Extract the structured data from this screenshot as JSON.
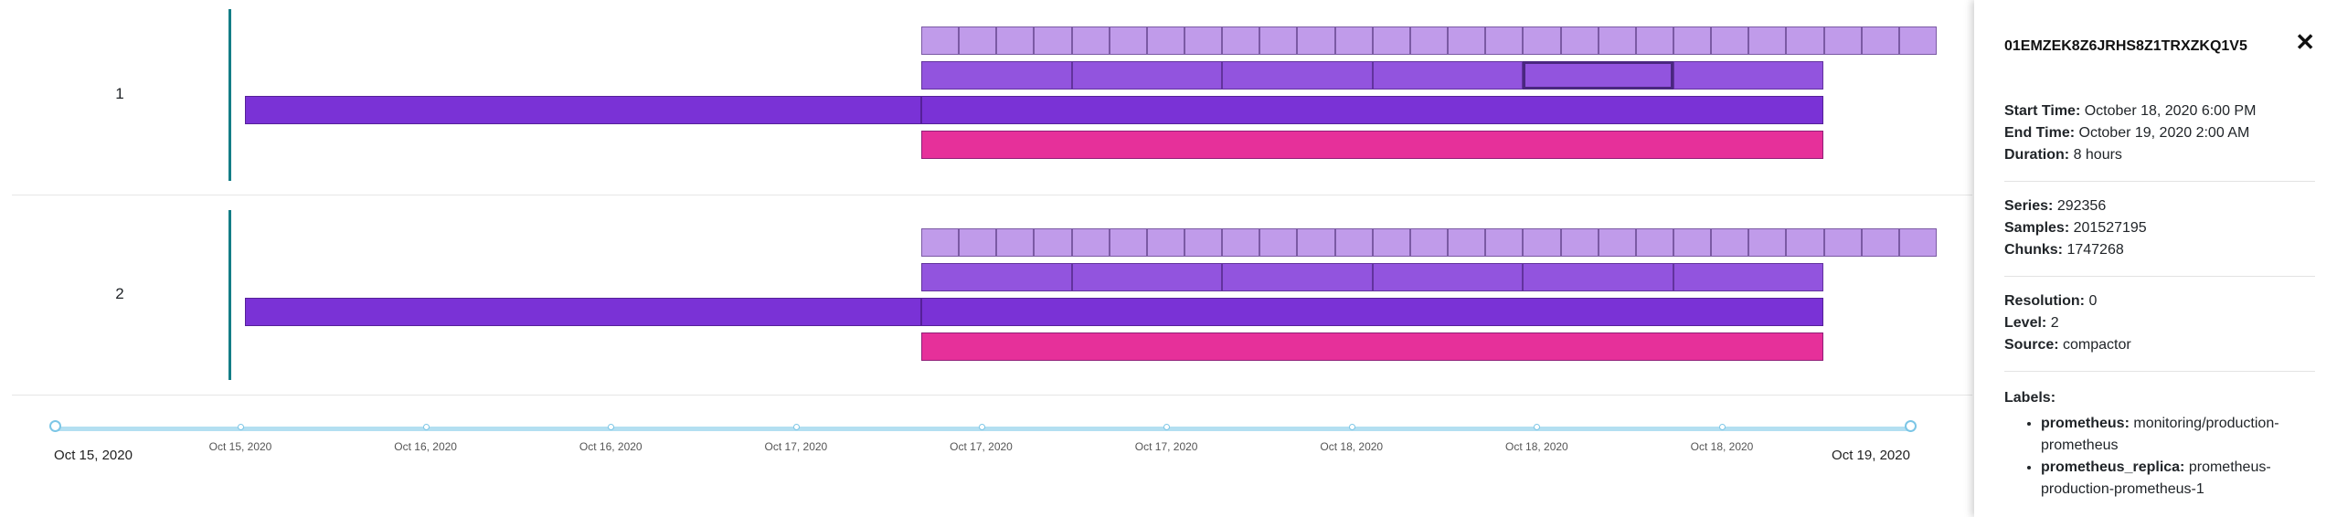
{
  "rows": [
    {
      "label": "1",
      "selected_block": {
        "level": 1,
        "index": 4
      }
    },
    {
      "label": "2",
      "selected_block": null
    }
  ],
  "levels": [
    {
      "name": "level-3",
      "color": "#c09bea",
      "blocks": 27
    },
    {
      "name": "level-2",
      "color": "#9254de",
      "blocks": 6
    },
    {
      "name": "level-1",
      "color": "#7a32d6",
      "blocks": 2
    },
    {
      "name": "level-0",
      "color": "#e6309a",
      "blocks": 1
    }
  ],
  "timeline": {
    "start_label": "Oct 15, 2020",
    "end_label": "Oct 19, 2020",
    "ticks": [
      "Oct 15, 2020",
      "Oct 16, 2020",
      "Oct 16, 2020",
      "Oct 17, 2020",
      "Oct 17, 2020",
      "Oct 17, 2020",
      "Oct 18, 2020",
      "Oct 18, 2020",
      "Oct 18, 2020"
    ]
  },
  "panel": {
    "title": "01EMZEK8Z6JRHS8Z1TRXZKQ1V5",
    "close_icon": "close-icon",
    "start_time_label": "Start Time:",
    "start_time": "October 18, 2020 6:00 PM",
    "end_time_label": "End Time:",
    "end_time": "October 19, 2020 2:00 AM",
    "duration_label": "Duration:",
    "duration": "8 hours",
    "series_label": "Series:",
    "series": "292356",
    "samples_label": "Samples:",
    "samples": "201527195",
    "chunks_label": "Chunks:",
    "chunks": "1747268",
    "resolution_label": "Resolution:",
    "resolution": "0",
    "level_label": "Level:",
    "level": "2",
    "source_label": "Source:",
    "source": "compactor",
    "labels_title": "Labels:",
    "labels": [
      {
        "key": "prometheus:",
        "value": "monitoring/production-prometheus"
      },
      {
        "key": "prometheus_replica:",
        "value": "prometheus-production-prometheus-1"
      }
    ]
  }
}
